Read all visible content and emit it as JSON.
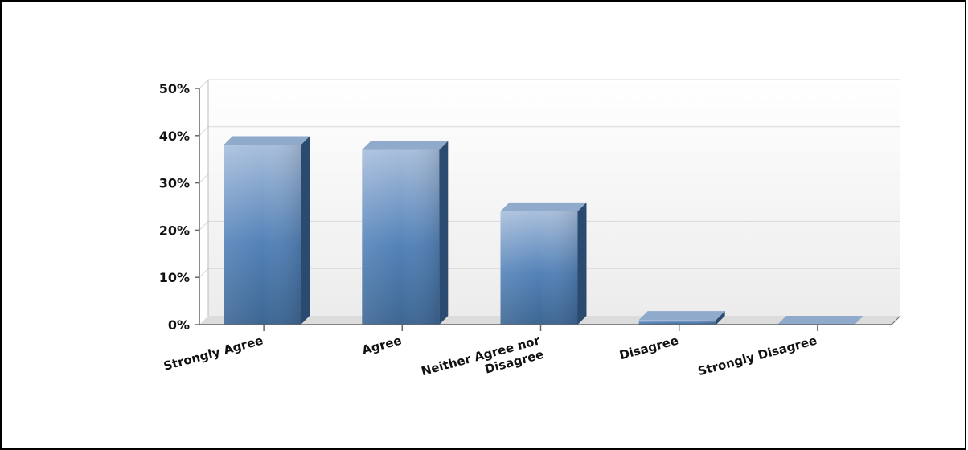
{
  "chart_data": {
    "type": "bar",
    "categories": [
      "Strongly Agree",
      "Agree",
      "Neither Agree nor Disagree",
      "Disagree",
      "Strongly Disagree"
    ],
    "category_label_lines": [
      [
        "Strongly Agree"
      ],
      [
        "Agree"
      ],
      [
        "Neither Agree nor",
        "Disagree"
      ],
      [
        "Disagree"
      ],
      [
        "Strongly Disagree"
      ]
    ],
    "values": [
      38,
      37,
      24,
      1,
      0
    ],
    "ylim": [
      0,
      50
    ],
    "yticks": [
      0,
      10,
      20,
      30,
      40,
      50
    ],
    "ytick_labels": [
      "0%",
      "10%",
      "20%",
      "30%",
      "40%",
      "50%"
    ],
    "title": "",
    "xlabel": "",
    "ylabel": "",
    "grid": true,
    "style": "3d-gradient-columns",
    "colors": {
      "bar_light": "#a9bfdc",
      "bar_mid": "#5382b8",
      "bar_dark": "#3d6693",
      "bar_side": "#2b4a6f",
      "bar_top": "#8faacb",
      "grid": "#d8d8d8",
      "plot_bg_top": "#ffffff",
      "plot_bg_bottom": "#ececec",
      "axis": "#666666"
    }
  }
}
